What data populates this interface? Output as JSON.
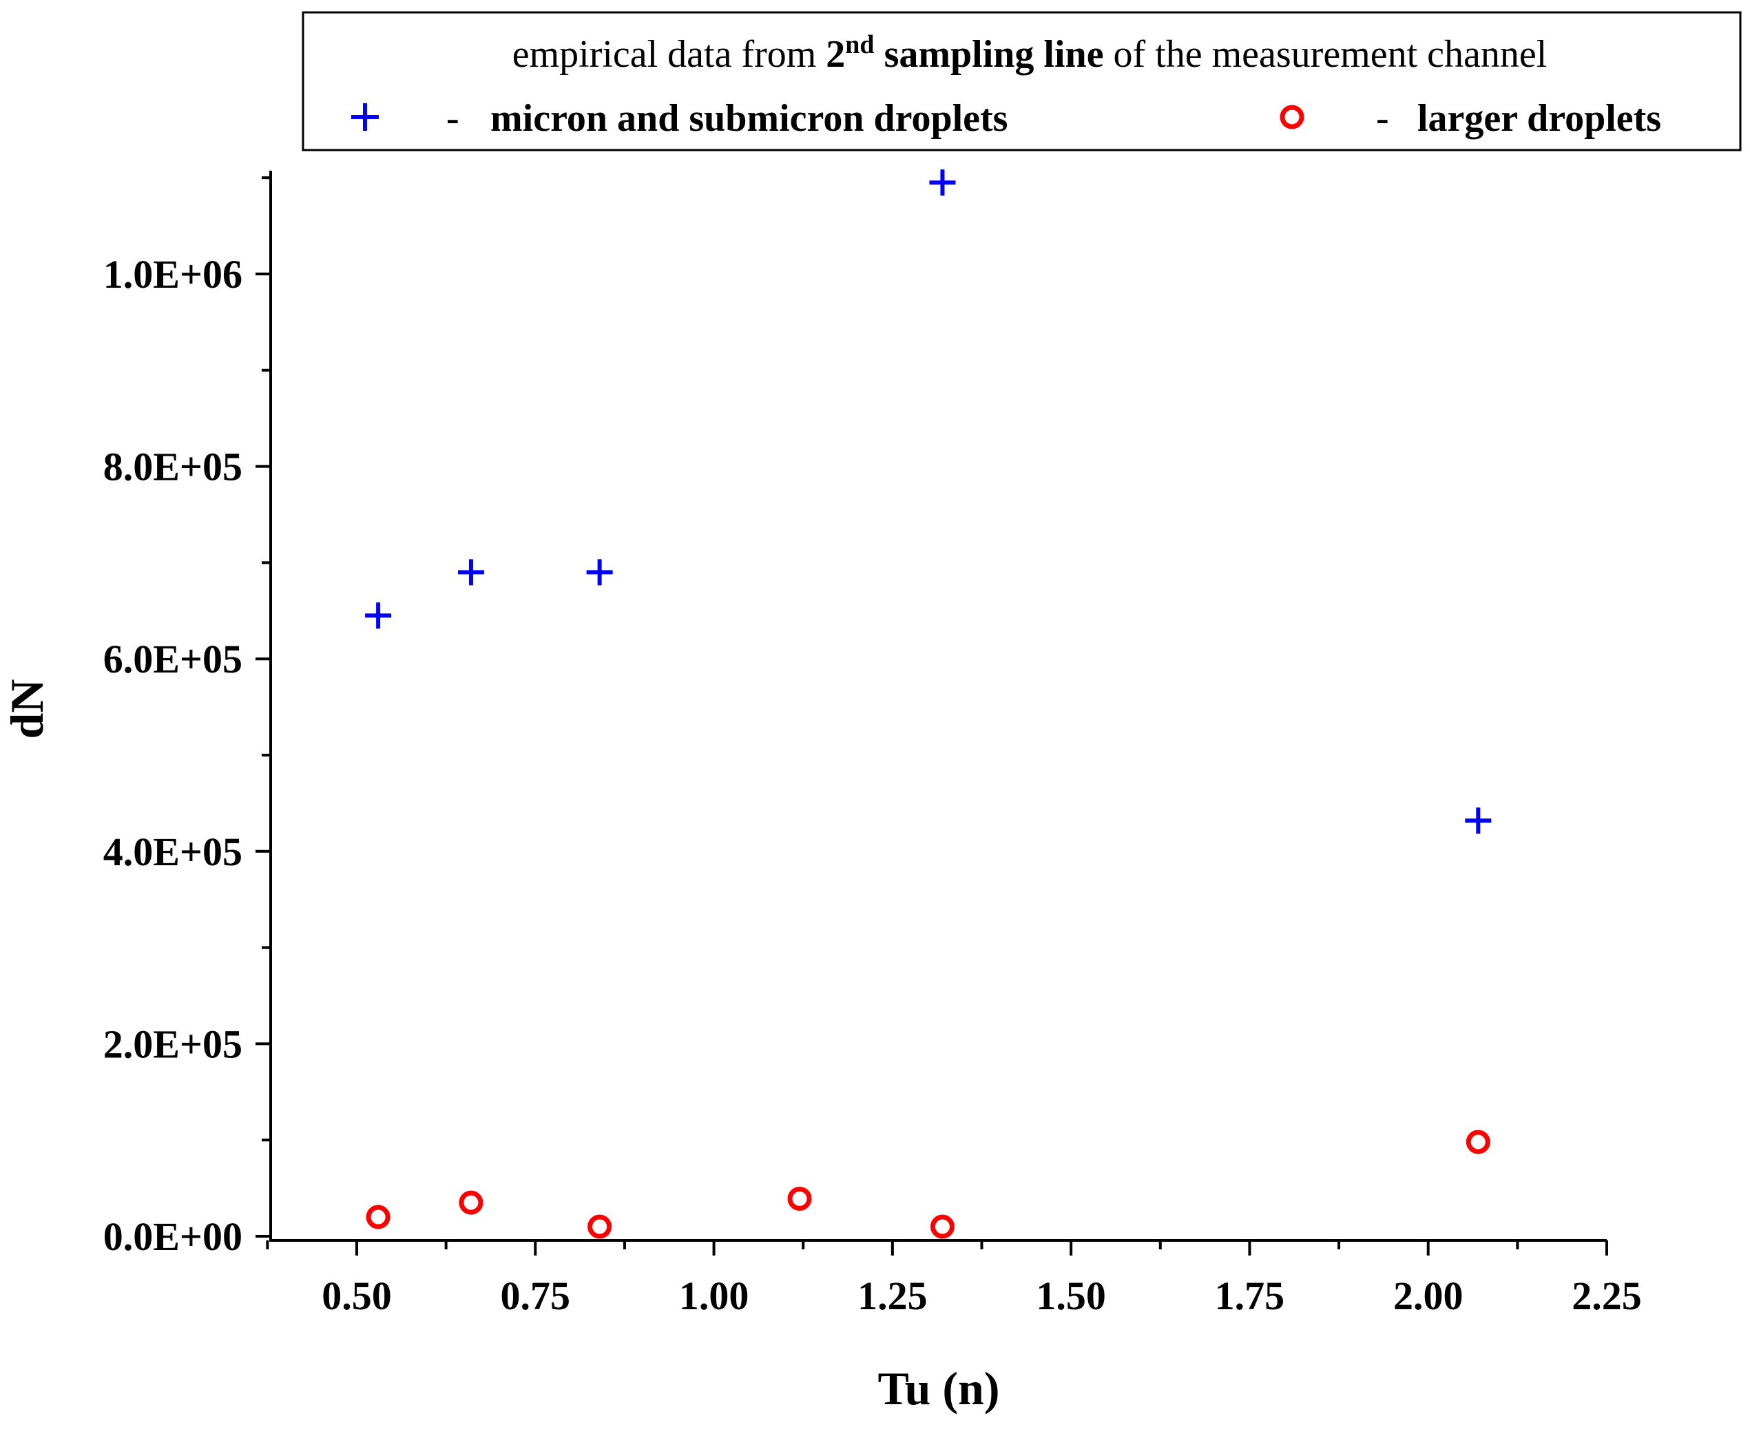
{
  "chart_data": {
    "type": "scatter",
    "xlabel": "Tu (n)",
    "ylabel": "dN",
    "xlim": [
      0.38,
      2.25
    ],
    "ylim": [
      0,
      1110000
    ],
    "x_ticks": [
      0.5,
      0.75,
      1.0,
      1.25,
      1.5,
      1.75,
      2.0,
      2.25
    ],
    "x_tick_labels": [
      "0.50",
      "0.75",
      "1.00",
      "1.25",
      "1.50",
      "1.75",
      "2.00",
      "2.25"
    ],
    "x_minor_ticks": [
      0.375,
      0.625,
      0.875,
      1.125,
      1.375,
      1.625,
      1.875,
      2.125
    ],
    "y_ticks": [
      0,
      200000,
      400000,
      600000,
      800000,
      1000000
    ],
    "y_tick_labels": [
      "0.0E+00",
      "2.0E+05",
      "4.0E+05",
      "6.0E+05",
      "8.0E+05",
      "1.0E+06"
    ],
    "y_minor_ticks": [
      100000,
      300000,
      500000,
      700000,
      900000,
      1100000
    ],
    "legend": {
      "title_prefix": "empirical data from ",
      "title_bold_num": "2",
      "title_sup": "nd",
      "title_bold_rest": " sampling line",
      "title_suffix": " of the measurement channel",
      "dash": "-",
      "placement": "top"
    },
    "series": [
      {
        "name": "micron and submicron droplets",
        "marker": "plus",
        "color": "#0000ff",
        "x": [
          0.53,
          0.66,
          0.84,
          1.32,
          2.07
        ],
        "y": [
          645000,
          690000,
          690000,
          1095000,
          432000
        ]
      },
      {
        "name": "larger droplets",
        "marker": "circle",
        "color": "#ff0000",
        "x": [
          0.53,
          0.66,
          0.84,
          1.12,
          1.32,
          2.07
        ],
        "y": [
          20000,
          35000,
          10000,
          39000,
          10000,
          98000
        ]
      }
    ]
  }
}
